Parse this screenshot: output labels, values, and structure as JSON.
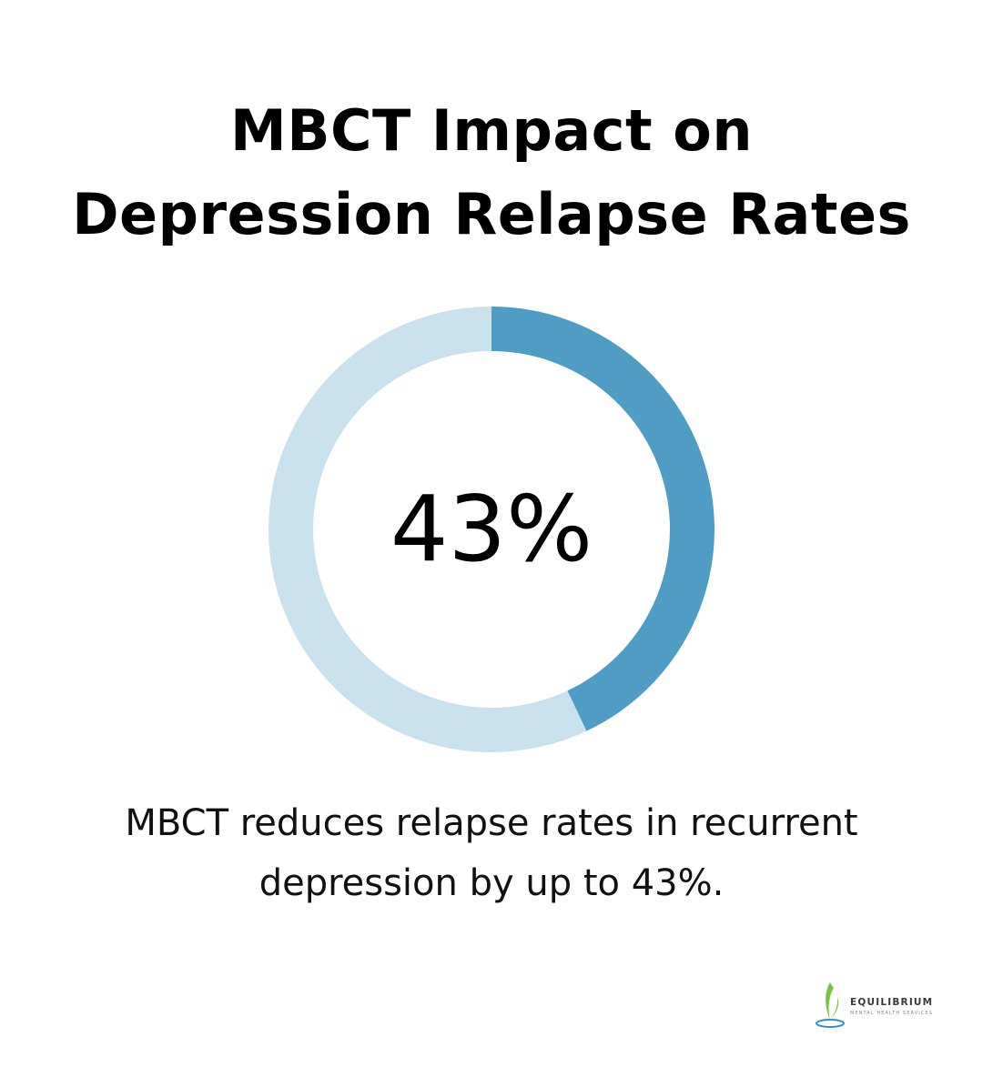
{
  "title": {
    "line1": "MBCT Impact on",
    "line2": "Depression Relapse Rates"
  },
  "chart_data": {
    "type": "pie",
    "variant": "donut",
    "value_percent": 43,
    "center_label": "43%",
    "slices": [
      {
        "value": 43,
        "color": "#4f9dc4"
      },
      {
        "value": 57,
        "color": "#c9e1ed"
      }
    ]
  },
  "caption": {
    "line1": "MBCT reduces relapse rates in recurrent",
    "line2": "depression by up to 43%."
  },
  "logo": {
    "name": "EQUILIBRIUM",
    "tagline": "MENTAL HEALTH SERVICES"
  },
  "colors": {
    "highlight": "#4f9dc4",
    "track": "#c9e1ed",
    "logo_leaf": "#7cc242",
    "logo_water": "#2e8fc9"
  }
}
